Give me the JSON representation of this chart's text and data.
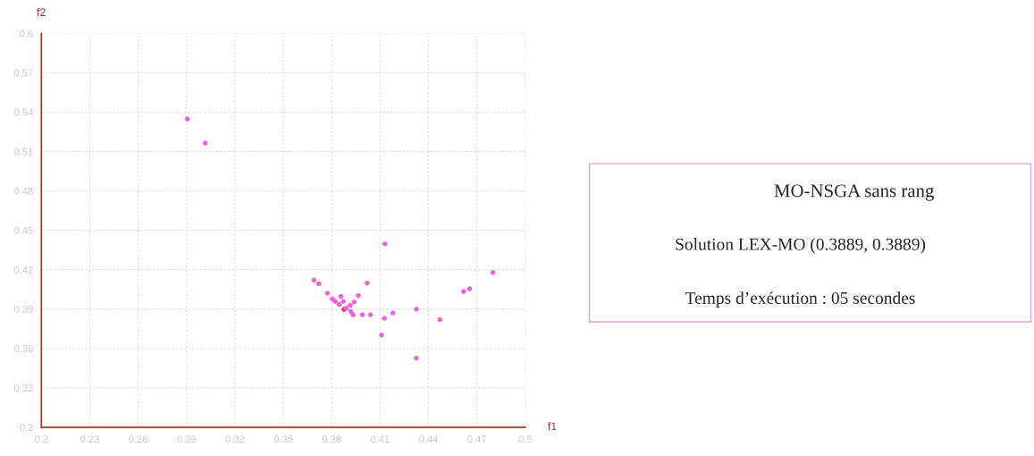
{
  "chart_data": {
    "type": "scatter",
    "title": "MO-NSGA sans rang",
    "annotations": [
      "Solution LEX-MO (0.3889, 0.3889)",
      "Temps d’exécution : 05 secondes"
    ],
    "xlabel": "f1",
    "ylabel": "f2",
    "x": [
      0.2905,
      0.3016,
      0.413,
      0.48,
      0.369,
      0.372,
      0.402,
      0.4618,
      0.4655,
      0.3774,
      0.3965,
      0.3804,
      0.3857,
      0.3822,
      0.3872,
      0.3846,
      0.3939,
      0.3915,
      0.3876,
      0.389,
      0.3919,
      0.3933,
      0.399,
      0.404,
      0.4325,
      0.418,
      0.4127,
      0.4471,
      0.4109,
      0.4324
    ],
    "series": [
      {
        "values": [
          0.5347,
          0.5164,
          0.4397,
          0.4178,
          0.412,
          0.4094,
          0.4098,
          0.4033,
          0.4055,
          0.4021,
          0.4003,
          0.3978,
          0.3996,
          0.3958,
          0.3958,
          0.3935,
          0.3953,
          0.3928,
          0.3897,
          0.3906,
          0.388,
          0.3856,
          0.3856,
          0.3856,
          0.39,
          0.3871,
          0.383,
          0.3819,
          0.3702,
          0.3527
        ],
        "colors": [
          "#f060e0",
          "#f060e0",
          "#f060e0",
          "#f060e0",
          "#f060e0",
          "#f060e0",
          "#f060e0",
          "#f060e0",
          "#f060e0",
          "#f060e0",
          "#f060e0",
          "#f060e0",
          "#f060e0",
          "#f060e0",
          "#f060e0",
          "#f060e0",
          "#f060e0",
          "#f060e0",
          "#e8304a",
          "#f060e0",
          "#f060e0",
          "#f060e0",
          "#f060e0",
          "#f060e0",
          "#f060e0",
          "#f060e0",
          "#f060e0",
          "#f060e0",
          "#f060e0",
          "#f060e0"
        ]
      }
    ],
    "xlim": [
      0.2,
      0.5
    ],
    "xticks": [
      0.2,
      0.23,
      0.26,
      0.29,
      0.32,
      0.35,
      0.38,
      0.41,
      0.44,
      0.47,
      0.5
    ],
    "ylim": [
      0.3,
      0.6
    ],
    "yticks": [
      0.3,
      0.33,
      0.36,
      0.39,
      0.42,
      0.45,
      0.48,
      0.51,
      0.54,
      0.57,
      0.6
    ],
    "grid": true
  }
}
